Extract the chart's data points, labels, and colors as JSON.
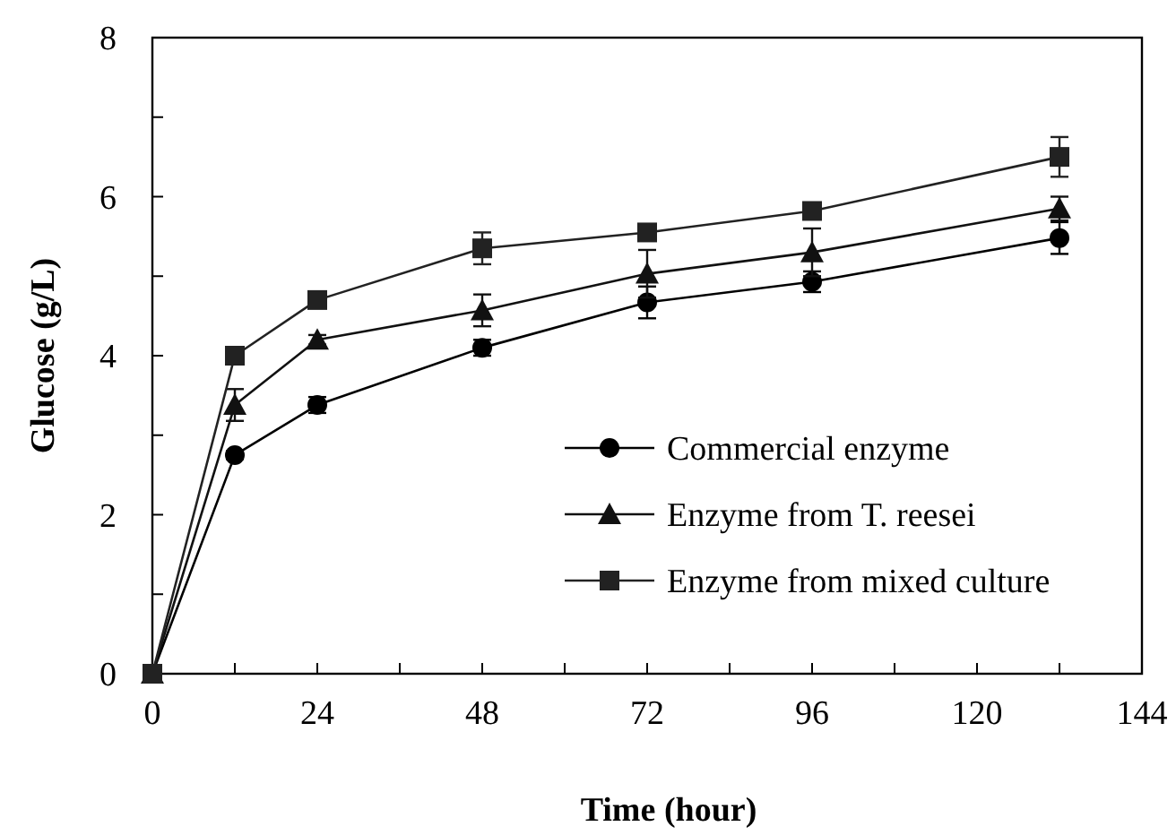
{
  "chart_data": {
    "type": "line",
    "xlabel": "Time (hour)",
    "ylabel": "Glucose (g/L)",
    "xlim": [
      0,
      144
    ],
    "ylim": [
      0,
      8
    ],
    "xticks": [
      0,
      {
        "value": 12,
        "label": null
      },
      24,
      {
        "value": 36,
        "label": null
      },
      48,
      {
        "value": 60,
        "label": null
      },
      72,
      {
        "value": 84,
        "label": null
      },
      96,
      {
        "value": 108,
        "label": null
      },
      120,
      {
        "value": 132,
        "label": null
      },
      144
    ],
    "yticks": [
      0,
      {
        "value": 1,
        "label": null
      },
      2,
      {
        "value": 3,
        "label": null
      },
      4,
      {
        "value": 5,
        "label": null
      },
      6,
      {
        "value": 7,
        "label": null
      },
      8
    ],
    "x": [
      0,
      12,
      24,
      48,
      72,
      96,
      132
    ],
    "grid": false,
    "legend": "right",
    "line_style": "solid",
    "series": [
      {
        "name": "Commercial enzyme",
        "color": "#000000",
        "marker": "circle",
        "values": [
          0,
          2.75,
          3.38,
          4.1,
          4.67,
          4.93,
          5.48
        ],
        "errors": [
          null,
          0.05,
          0.1,
          0.1,
          0.2,
          0.13,
          0.2
        ]
      },
      {
        "name": "Enzyme from T. reesei",
        "color": "#111111",
        "marker": "triangle",
        "values": [
          0,
          3.38,
          4.2,
          4.57,
          5.03,
          5.3,
          5.85
        ],
        "errors": [
          null,
          0.2,
          0.06,
          0.2,
          0.3,
          0.3,
          0.15
        ]
      },
      {
        "name": "Enzyme from mixed culture",
        "color": "#222222",
        "marker": "square",
        "values": [
          0,
          4.0,
          4.7,
          5.35,
          5.55,
          5.82,
          6.5
        ],
        "errors": [
          null,
          0.05,
          0.05,
          0.2,
          0.05,
          0.05,
          0.25
        ]
      }
    ]
  }
}
